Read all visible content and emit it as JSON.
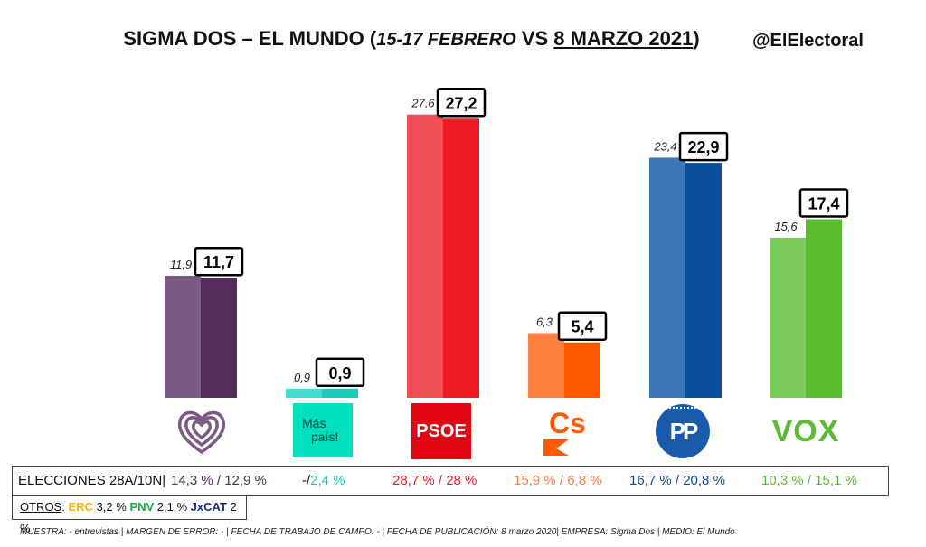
{
  "header": {
    "title_a": "SIGMA DOS – EL MUNDO (",
    "title_b": "15-17 FEBRERO",
    "title_c": " VS ",
    "title_d": "8 MARZO 2021",
    "title_e": ")",
    "handle": "@ElElectoral"
  },
  "chart_data": {
    "type": "bar",
    "categories": [
      "Unidas Podemos",
      "Más País",
      "PSOE",
      "Cs",
      "PP",
      "VOX"
    ],
    "series": [
      {
        "values": [
          11.9,
          0.9,
          27.6,
          6.3,
          23.4,
          15.6
        ]
      },
      {
        "values": [
          11.7,
          0.9,
          27.2,
          5.4,
          22.9,
          17.4
        ]
      }
    ],
    "labels_old": [
      "11,9",
      "0,9",
      "27,6",
      "6,3",
      "23,4",
      "15,6"
    ],
    "labels_new": [
      "11,7",
      "0,9",
      "27,2",
      "5,4",
      "22,9",
      "17,4"
    ],
    "colors_old": [
      "#7B5A84",
      "#3FE0D0",
      "#F25058",
      "#FF7F3F",
      "#3B78B5",
      "#7DCC5B"
    ],
    "colors_new": [
      "#532C59",
      "#17CDBA",
      "#ED1C24",
      "#FF5A00",
      "#0A4E9B",
      "#58BC2E"
    ],
    "ylim": [
      0,
      30
    ]
  },
  "logos": {
    "mas_pais_1": "Más",
    "mas_pais_2": "país!",
    "psoe": "PSOE",
    "cs": "Cs",
    "pp": "PP",
    "vox": "VOX"
  },
  "elections": {
    "label": "ELECCIONES 28A/10N",
    "sep": "|",
    "up": "14,3 % / 12,9 %",
    "mp_a": "-/",
    "mp_b": "2,4 %",
    "psoe": "28,7  % / 28 %",
    "cs": "15,9 % / 6,8 %",
    "pp": "16,7 % / 20,8 %",
    "vox": "10,3 % / 15,1 %",
    "colors": {
      "up": "#532C59",
      "mp": "#17CDBA",
      "psoe": "#ED1C24",
      "cs": "#FF7F3F",
      "pp": "#0A4E9B",
      "vox": "#58BC2E"
    }
  },
  "otros": {
    "label": "OTROS",
    "colon": ":",
    "erc": "ERC",
    "erc_val": "3,2 %",
    "pnv": "PNV",
    "pnv_val": "2,1 %",
    "jxcat": "JxCAT",
    "jxcat_val": "2 %"
  },
  "footer": "MUESTRA: - entrevistas | MARGEN DE ERROR: - | FECHA DE TRABAJO DE CAMPO: - | FECHA DE PUBLICACIÓN: 8 marzo 2020| EMPRESA: Sigma Dos | MEDIO: El Mundo"
}
